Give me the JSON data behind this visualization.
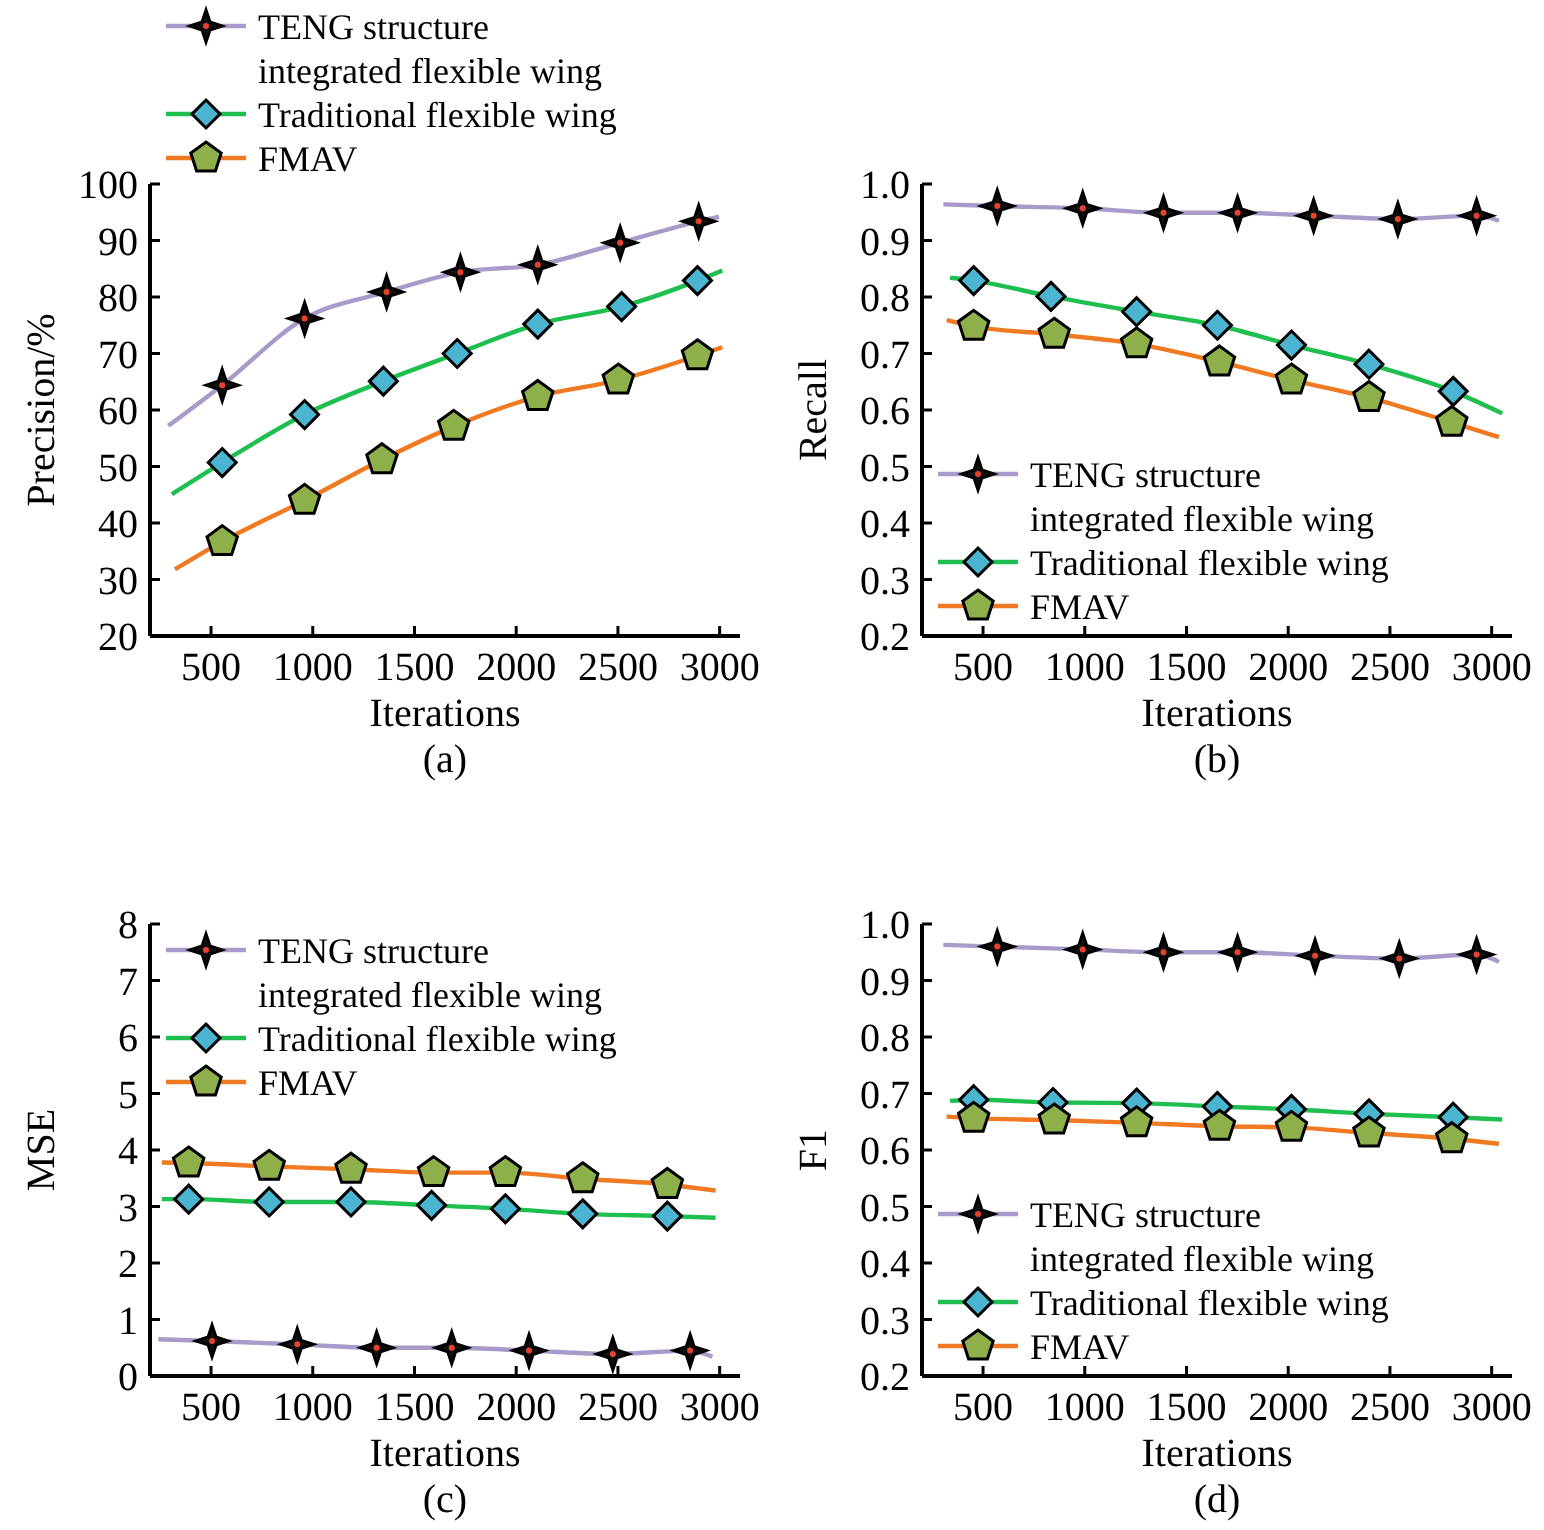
{
  "chart_data": [
    {
      "type": "line",
      "title": "(a)",
      "xlabel": "Iterations",
      "ylabel": "Precision/%",
      "xlim": [
        200,
        3100
      ],
      "xticks": [
        500,
        1000,
        1500,
        2000,
        2500,
        3000
      ],
      "ylim": [
        20,
        100
      ],
      "yticks": [
        20,
        30,
        40,
        50,
        60,
        70,
        80,
        90,
        100
      ],
      "legend": "top",
      "grid": false,
      "series": [
        {
          "name": "TENG structure integrated flexible wing",
          "color": "#a99bc9",
          "x": [
            290,
            555,
            960,
            1363,
            1726,
            2106,
            2511,
            2897,
            2997
          ],
          "values": [
            57.2,
            64.4,
            76.2,
            80.9,
            84.4,
            85.7,
            89.6,
            93.4,
            94.2
          ]
        },
        {
          "type": "scatter",
          "marker": "star",
          "color": "#111111",
          "x": [
            555,
            960,
            1363,
            1726,
            2106,
            2511,
            2897
          ],
          "values": [
            64.4,
            76.2,
            80.9,
            84.4,
            85.7,
            89.6,
            93.4
          ]
        },
        {
          "name": "Traditional flexible wing",
          "color": "#1fbf4f",
          "x": [
            307,
            555,
            960,
            1347,
            1710,
            2106,
            2518,
            2891,
            3013
          ],
          "values": [
            45.1,
            50.7,
            59.2,
            65.1,
            70,
            75.2,
            78.3,
            82.9,
            84.7
          ]
        },
        {
          "type": "scatter",
          "marker": "diamond",
          "color": "#4bb4d0",
          "x": [
            555,
            960,
            1347,
            1710,
            2106,
            2518,
            2891
          ],
          "values": [
            50.7,
            59.2,
            65.1,
            70,
            75.2,
            78.3,
            82.9
          ]
        },
        {
          "name": "FMAV",
          "color": "#f07a22",
          "x": [
            323,
            555,
            960,
            1340,
            1693,
            2106,
            2502,
            2891,
            3013
          ],
          "values": [
            31.8,
            36.7,
            44,
            51.2,
            57.1,
            62.4,
            65.3,
            69.6,
            71.1
          ]
        },
        {
          "type": "scatter",
          "color": "#8db04a",
          "x": [
            555,
            960,
            1340,
            1693,
            2106,
            2502,
            2891
          ],
          "values": [
            36.7,
            44,
            51.2,
            57.1,
            62.4,
            65.3,
            69.6
          ]
        }
      ]
    },
    {
      "type": "line",
      "title": "(b)",
      "xlabel": "Iterations",
      "ylabel": "Recall",
      "xlim": [
        200,
        3100
      ],
      "xticks": [
        500,
        1000,
        1500,
        2000,
        2500,
        3000
      ],
      "ylim": [
        0.2,
        1.0
      ],
      "yticks": [
        {
          "value": 0.2,
          "label": "0.2"
        },
        {
          "value": 0.3,
          "label": "0.3"
        },
        {
          "value": 0.4,
          "label": "0.4"
        },
        {
          "value": 0.5,
          "label": "0.5"
        },
        {
          "value": 0.6,
          "label": "0.6"
        },
        {
          "value": 0.7,
          "label": "0.7"
        },
        {
          "value": 0.8,
          "label": "0.8"
        },
        {
          "value": 0.9,
          "label": "0.9"
        },
        {
          "value": 1.0,
          "label": "1.0"
        }
      ],
      "legend": "bottom left",
      "grid": false,
      "series": [
        {
          "name": "TENG structure integrated flexible wing",
          "color": "#a99bc9",
          "x": [
            305,
            570,
            990,
            1387,
            1751,
            2125,
            2539,
            2926,
            3036
          ],
          "values": [
            0.964,
            0.961,
            0.957,
            0.949,
            0.949,
            0.944,
            0.938,
            0.944,
            0.935
          ]
        },
        {
          "type": "scatter",
          "marker": "star",
          "color": "#111111",
          "x": [
            570,
            990,
            1387,
            1751,
            2125,
            2539,
            2926
          ],
          "values": [
            0.961,
            0.957,
            0.949,
            0.949,
            0.944,
            0.938,
            0.944
          ]
        },
        {
          "name": "Traditional flexible wing",
          "color": "#1fbf4f",
          "x": [
            338,
            454,
            834,
            1255,
            1652,
            2016,
            2397,
            2811,
            3052
          ],
          "values": [
            0.834,
            0.829,
            0.801,
            0.774,
            0.75,
            0.715,
            0.681,
            0.633,
            0.594
          ]
        },
        {
          "type": "scatter",
          "marker": "diamond",
          "color": "#4bb4d0",
          "x": [
            454,
            834,
            1255,
            1652,
            2016,
            2397,
            2811
          ],
          "values": [
            0.829,
            0.801,
            0.774,
            0.75,
            0.715,
            0.681,
            0.633
          ]
        },
        {
          "name": "FMAV",
          "color": "#f07a22",
          "x": [
            321,
            454,
            850,
            1255,
            1662,
            2016,
            2397,
            2804,
            3036
          ],
          "values": [
            0.759,
            0.748,
            0.734,
            0.717,
            0.685,
            0.653,
            0.622,
            0.578,
            0.552
          ]
        },
        {
          "type": "scatter",
          "color": "#8db04a",
          "x": [
            454,
            850,
            1255,
            1662,
            2016,
            2397,
            2804
          ],
          "values": [
            0.748,
            0.734,
            0.717,
            0.685,
            0.653,
            0.622,
            0.578
          ]
        }
      ]
    },
    {
      "type": "line",
      "title": "(c)",
      "xlabel": "Iterations",
      "ylabel": "MSE",
      "xlim": [
        200,
        3100
      ],
      "xticks": [
        500,
        1000,
        1500,
        2000,
        2500,
        3000
      ],
      "ylim": [
        0,
        8
      ],
      "yticks": [
        0,
        1,
        2,
        3,
        4,
        5,
        6,
        7,
        8
      ],
      "legend": "top left",
      "grid": false,
      "series": [
        {
          "name": "TENG structure integrated flexible wing",
          "color": "#a99bc9",
          "x": [
            241,
            505,
            924,
            1314,
            1683,
            2063,
            2475,
            2855,
            2964
          ],
          "values": [
            0.65,
            0.62,
            0.56,
            0.5,
            0.5,
            0.45,
            0.39,
            0.45,
            0.34
          ]
        },
        {
          "type": "scatter",
          "marker": "star",
          "color": "#111111",
          "x": [
            505,
            924,
            1314,
            1683,
            2063,
            2475,
            2855
          ],
          "values": [
            0.62,
            0.56,
            0.5,
            0.5,
            0.45,
            0.39,
            0.45
          ]
        },
        {
          "name": "Traditional flexible wing",
          "color": "#1fbf4f",
          "x": [
            258,
            390,
            786,
            1188,
            1584,
            1947,
            2327,
            2743,
            2980
          ],
          "values": [
            3.13,
            3.13,
            3.08,
            3.08,
            3.02,
            2.96,
            2.87,
            2.83,
            2.8
          ]
        },
        {
          "type": "scatter",
          "marker": "diamond",
          "color": "#4bb4d0",
          "x": [
            390,
            786,
            1188,
            1584,
            1947,
            2327,
            2743
          ],
          "values": [
            3.13,
            3.08,
            3.08,
            3.02,
            2.96,
            2.87,
            2.83
          ]
        },
        {
          "name": "FMAV",
          "color": "#f07a22",
          "x": [
            258,
            390,
            786,
            1188,
            1594,
            1947,
            2327,
            2743,
            2980
          ],
          "values": [
            3.78,
            3.77,
            3.71,
            3.66,
            3.6,
            3.6,
            3.49,
            3.39,
            3.28
          ]
        },
        {
          "type": "scatter",
          "color": "#8db04a",
          "x": [
            390,
            786,
            1188,
            1594,
            1947,
            2327,
            2743
          ],
          "values": [
            3.77,
            3.71,
            3.66,
            3.6,
            3.6,
            3.49,
            3.39
          ]
        }
      ]
    },
    {
      "type": "line",
      "title": "(d)",
      "xlabel": "Iterations",
      "ylabel": "F1",
      "xlim": [
        200,
        3100
      ],
      "xticks": [
        500,
        1000,
        1500,
        2000,
        2500,
        3000
      ],
      "ylim": [
        0.2,
        1.0
      ],
      "yticks": [
        {
          "value": 0.2,
          "label": "0.2"
        },
        {
          "value": 0.3,
          "label": "0.3"
        },
        {
          "value": 0.4,
          "label": "0.4"
        },
        {
          "value": 0.5,
          "label": "0.5"
        },
        {
          "value": 0.6,
          "label": "0.6"
        },
        {
          "value": 0.7,
          "label": "0.7"
        },
        {
          "value": 0.8,
          "label": "0.8"
        },
        {
          "value": 0.9,
          "label": "0.9"
        },
        {
          "value": 1.0,
          "label": "1.0"
        }
      ],
      "legend": "bottom left",
      "grid": false,
      "series": [
        {
          "name": "TENG structure integrated flexible wing",
          "color": "#a99bc9",
          "x": [
            305,
            570,
            990,
            1387,
            1751,
            2132,
            2546,
            2926,
            3036
          ],
          "values": [
            0.963,
            0.96,
            0.955,
            0.95,
            0.95,
            0.944,
            0.939,
            0.946,
            0.933
          ]
        },
        {
          "type": "scatter",
          "marker": "star",
          "color": "#111111",
          "x": [
            570,
            990,
            1387,
            1751,
            2132,
            2546,
            2926
          ],
          "values": [
            0.96,
            0.955,
            0.95,
            0.95,
            0.944,
            0.939,
            0.946
          ]
        },
        {
          "name": "Traditional flexible wing",
          "color": "#1fbf4f",
          "x": [
            338,
            454,
            844,
            1255,
            1652,
            2016,
            2397,
            2811,
            3052
          ],
          "values": [
            0.687,
            0.689,
            0.684,
            0.683,
            0.677,
            0.672,
            0.664,
            0.658,
            0.654
          ]
        },
        {
          "type": "scatter",
          "marker": "diamond",
          "color": "#4bb4d0",
          "x": [
            454,
            844,
            1255,
            1652,
            2016,
            2397,
            2811
          ],
          "values": [
            0.689,
            0.684,
            0.683,
            0.677,
            0.672,
            0.664,
            0.658
          ]
        },
        {
          "name": "FMAV",
          "color": "#f07a22",
          "x": [
            321,
            454,
            850,
            1255,
            1662,
            2016,
            2397,
            2804,
            3036
          ],
          "values": [
            0.659,
            0.656,
            0.653,
            0.648,
            0.642,
            0.64,
            0.63,
            0.62,
            0.611
          ]
        },
        {
          "type": "scatter",
          "color": "#8db04a",
          "x": [
            454,
            850,
            1255,
            1662,
            2016,
            2397,
            2804
          ],
          "values": [
            0.656,
            0.653,
            0.648,
            0.642,
            0.64,
            0.63,
            0.62
          ]
        }
      ]
    }
  ]
}
